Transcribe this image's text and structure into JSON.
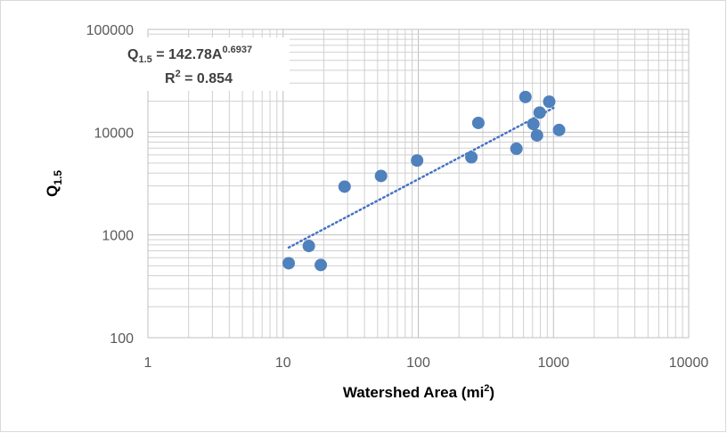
{
  "chart_data": {
    "type": "scatter",
    "x_scale": "log",
    "y_scale": "log",
    "xlim": [
      1,
      10000
    ],
    "ylim": [
      100,
      100000
    ],
    "grid": true,
    "xticks": [
      "1",
      "10",
      "100",
      "1000",
      "10000"
    ],
    "yticks": [
      "100",
      "1000",
      "10000",
      "100000"
    ],
    "xlabel": {
      "main": "Watershed Area (mi",
      "sup": "2",
      "close": ")"
    },
    "ylabel": {
      "main": "Q",
      "sub": "1.5"
    },
    "equation": {
      "lhs": "Q",
      "lhs_sub": "1.5",
      "rhs": " = 142.78A",
      "exponent": "0.6937"
    },
    "r_squared": {
      "label": "R",
      "sup": "2",
      "rest": " = 0.854"
    },
    "trendline": {
      "type": "power",
      "coefficient": 142.78,
      "exponent": 0.6937,
      "x_range": [
        11,
        1000
      ],
      "color": "#4472c4",
      "style": "dotted"
    },
    "marker_color": "#4f81bd",
    "points": [
      {
        "x": 11,
        "y": 530
      },
      {
        "x": 15.5,
        "y": 780
      },
      {
        "x": 19,
        "y": 510
      },
      {
        "x": 28.5,
        "y": 2950
      },
      {
        "x": 53,
        "y": 3750
      },
      {
        "x": 98,
        "y": 5300
      },
      {
        "x": 247,
        "y": 5700
      },
      {
        "x": 278,
        "y": 12300
      },
      {
        "x": 532,
        "y": 6900
      },
      {
        "x": 620,
        "y": 22000
      },
      {
        "x": 710,
        "y": 12000
      },
      {
        "x": 755,
        "y": 9300
      },
      {
        "x": 790,
        "y": 15500
      },
      {
        "x": 930,
        "y": 19800
      },
      {
        "x": 1100,
        "y": 10500
      }
    ]
  }
}
